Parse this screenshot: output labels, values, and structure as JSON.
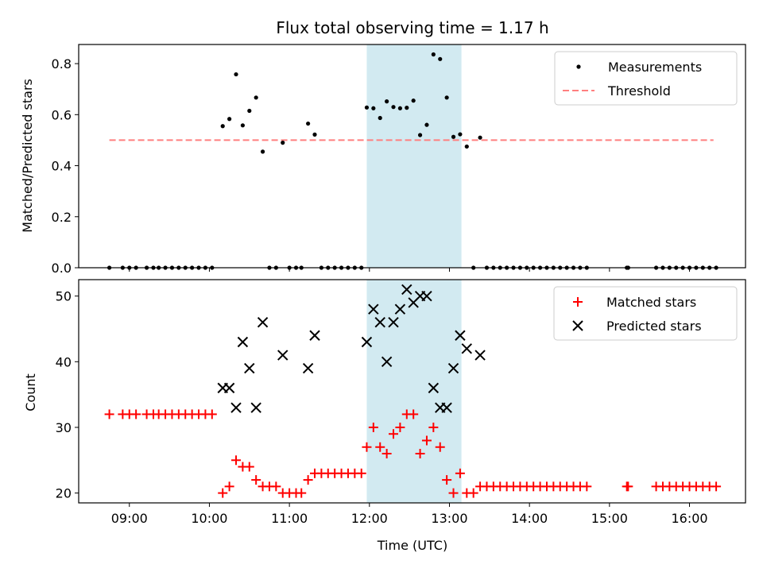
{
  "chart_data": {
    "title": "Flux total observing time = 1.17 h",
    "xlabel": "Time (UTC)",
    "x_unit": "hours UTC",
    "xlim": [
      "08:22",
      "16:42"
    ],
    "x_ticks": [
      "09:00",
      "10:00",
      "11:00",
      "12:00",
      "13:00",
      "14:00",
      "15:00",
      "16:00"
    ],
    "shaded_interval": {
      "start": "11:58",
      "end": "13:09",
      "color": "#add8e6"
    },
    "colors": {
      "measurements": "#000000",
      "threshold": "#ff7f7f",
      "matched": "#ff0000",
      "predicted": "#000000"
    },
    "top": {
      "type": "scatter",
      "ylabel": "Matched/Predicted stars",
      "ylim": [
        0,
        0.875
      ],
      "y_ticks": [
        "0.0",
        "0.2",
        "0.4",
        "0.6",
        "0.8"
      ],
      "legend": {
        "position": "top-right",
        "items": [
          "Measurements",
          "Threshold"
        ]
      },
      "threshold": {
        "value": 0.5,
        "x_start": "08:45",
        "x_end": "16:18"
      },
      "measurements": [
        [
          "08:45",
          0
        ],
        [
          "08:55",
          0
        ],
        [
          "09:00",
          0
        ],
        [
          "09:05",
          0
        ],
        [
          "09:13",
          0
        ],
        [
          "09:18",
          0
        ],
        [
          "09:22",
          0
        ],
        [
          "09:27",
          0
        ],
        [
          "09:32",
          0
        ],
        [
          "09:37",
          0
        ],
        [
          "09:42",
          0
        ],
        [
          "09:47",
          0
        ],
        [
          "09:52",
          0
        ],
        [
          "09:57",
          0
        ],
        [
          "10:02",
          0
        ],
        [
          "10:10",
          0.555
        ],
        [
          "10:15",
          0.583
        ],
        [
          "10:20",
          0.758
        ],
        [
          "10:25",
          0.558
        ],
        [
          "10:30",
          0.615
        ],
        [
          "10:35",
          0.667
        ],
        [
          "10:40",
          0.455
        ],
        [
          "10:45",
          0
        ],
        [
          "10:50",
          0
        ],
        [
          "10:55",
          0.49
        ],
        [
          "11:00",
          0
        ],
        [
          "11:05",
          0
        ],
        [
          "11:09",
          0
        ],
        [
          "11:14",
          0.565
        ],
        [
          "11:19",
          0.522
        ],
        [
          "11:24",
          0
        ],
        [
          "11:29",
          0
        ],
        [
          "11:34",
          0
        ],
        [
          "11:39",
          0
        ],
        [
          "11:44",
          0
        ],
        [
          "11:49",
          0
        ],
        [
          "11:54",
          0
        ],
        [
          "11:58",
          0.628
        ],
        [
          "12:03",
          0.625
        ],
        [
          "12:08",
          0.587
        ],
        [
          "12:13",
          0.652
        ],
        [
          "12:18",
          0.63
        ],
        [
          "12:23",
          0.625
        ],
        [
          "12:28",
          0.627
        ],
        [
          "12:33",
          0.655
        ],
        [
          "12:38",
          0.52
        ],
        [
          "12:43",
          0.56
        ],
        [
          "12:48",
          0.836
        ],
        [
          "12:53",
          0.818
        ],
        [
          "12:58",
          0.667
        ],
        [
          "13:03",
          0.513
        ],
        [
          "13:08",
          0.523
        ],
        [
          "13:13",
          0.475
        ],
        [
          "13:18",
          0
        ],
        [
          "13:23",
          0.51
        ],
        [
          "13:28",
          0
        ],
        [
          "13:33",
          0
        ],
        [
          "13:38",
          0
        ],
        [
          "13:43",
          0
        ],
        [
          "13:48",
          0
        ],
        [
          "13:53",
          0
        ],
        [
          "13:58",
          0
        ],
        [
          "14:03",
          0
        ],
        [
          "14:08",
          0
        ],
        [
          "14:13",
          0
        ],
        [
          "14:18",
          0
        ],
        [
          "14:23",
          0
        ],
        [
          "14:28",
          0
        ],
        [
          "14:33",
          0
        ],
        [
          "14:38",
          0
        ],
        [
          "14:43",
          0
        ],
        [
          "15:13",
          0
        ],
        [
          "15:14",
          0
        ],
        [
          "15:35",
          0
        ],
        [
          "15:40",
          0
        ],
        [
          "15:45",
          0
        ],
        [
          "15:50",
          0
        ],
        [
          "15:55",
          0
        ],
        [
          "16:00",
          0
        ],
        [
          "16:05",
          0
        ],
        [
          "16:10",
          0
        ],
        [
          "16:15",
          0
        ],
        [
          "16:20",
          0
        ]
      ]
    },
    "bottom": {
      "type": "scatter",
      "ylabel": "Count",
      "ylim": [
        18.5,
        52.5
      ],
      "y_ticks": [
        20,
        30,
        40,
        50
      ],
      "legend": {
        "position": "top-right",
        "items": [
          "Matched stars",
          "Predicted stars"
        ]
      },
      "matched": [
        [
          "08:45",
          32
        ],
        [
          "08:55",
          32
        ],
        [
          "09:00",
          32
        ],
        [
          "09:05",
          32
        ],
        [
          "09:13",
          32
        ],
        [
          "09:18",
          32
        ],
        [
          "09:22",
          32
        ],
        [
          "09:27",
          32
        ],
        [
          "09:32",
          32
        ],
        [
          "09:37",
          32
        ],
        [
          "09:42",
          32
        ],
        [
          "09:47",
          32
        ],
        [
          "09:52",
          32
        ],
        [
          "09:57",
          32
        ],
        [
          "10:02",
          32
        ],
        [
          "10:10",
          20
        ],
        [
          "10:15",
          21
        ],
        [
          "10:20",
          25
        ],
        [
          "10:25",
          24
        ],
        [
          "10:30",
          24
        ],
        [
          "10:35",
          22
        ],
        [
          "10:40",
          21
        ],
        [
          "10:45",
          21
        ],
        [
          "10:50",
          21
        ],
        [
          "10:55",
          20
        ],
        [
          "11:00",
          20
        ],
        [
          "11:05",
          20
        ],
        [
          "11:09",
          20
        ],
        [
          "11:14",
          22
        ],
        [
          "11:19",
          23
        ],
        [
          "11:24",
          23
        ],
        [
          "11:29",
          23
        ],
        [
          "11:34",
          23
        ],
        [
          "11:39",
          23
        ],
        [
          "11:44",
          23
        ],
        [
          "11:49",
          23
        ],
        [
          "11:54",
          23
        ],
        [
          "11:58",
          27
        ],
        [
          "12:03",
          30
        ],
        [
          "12:08",
          27
        ],
        [
          "12:13",
          26
        ],
        [
          "12:18",
          29
        ],
        [
          "12:23",
          30
        ],
        [
          "12:28",
          32
        ],
        [
          "12:33",
          32
        ],
        [
          "12:38",
          26
        ],
        [
          "12:43",
          28
        ],
        [
          "12:48",
          30
        ],
        [
          "12:53",
          27
        ],
        [
          "12:58",
          22
        ],
        [
          "13:03",
          20
        ],
        [
          "13:08",
          23
        ],
        [
          "13:13",
          20
        ],
        [
          "13:18",
          20
        ],
        [
          "13:23",
          21
        ],
        [
          "13:28",
          21
        ],
        [
          "13:33",
          21
        ],
        [
          "13:38",
          21
        ],
        [
          "13:43",
          21
        ],
        [
          "13:48",
          21
        ],
        [
          "13:53",
          21
        ],
        [
          "13:58",
          21
        ],
        [
          "14:03",
          21
        ],
        [
          "14:08",
          21
        ],
        [
          "14:13",
          21
        ],
        [
          "14:18",
          21
        ],
        [
          "14:23",
          21
        ],
        [
          "14:28",
          21
        ],
        [
          "14:33",
          21
        ],
        [
          "14:38",
          21
        ],
        [
          "14:43",
          21
        ],
        [
          "15:13",
          21
        ],
        [
          "15:14",
          21
        ],
        [
          "15:35",
          21
        ],
        [
          "15:40",
          21
        ],
        [
          "15:45",
          21
        ],
        [
          "15:50",
          21
        ],
        [
          "15:55",
          21
        ],
        [
          "16:00",
          21
        ],
        [
          "16:05",
          21
        ],
        [
          "16:10",
          21
        ],
        [
          "16:15",
          21
        ],
        [
          "16:20",
          21
        ]
      ],
      "predicted": [
        [
          "10:10",
          36
        ],
        [
          "10:15",
          36
        ],
        [
          "10:20",
          33
        ],
        [
          "10:25",
          43
        ],
        [
          "10:30",
          39
        ],
        [
          "10:35",
          33
        ],
        [
          "10:40",
          46
        ],
        [
          "10:55",
          41
        ],
        [
          "11:14",
          39
        ],
        [
          "11:19",
          44
        ],
        [
          "11:58",
          43
        ],
        [
          "12:03",
          48
        ],
        [
          "12:08",
          46
        ],
        [
          "12:13",
          40
        ],
        [
          "12:18",
          46
        ],
        [
          "12:23",
          48
        ],
        [
          "12:28",
          51
        ],
        [
          "12:33",
          49
        ],
        [
          "12:38",
          50
        ],
        [
          "12:43",
          50
        ],
        [
          "12:48",
          36
        ],
        [
          "12:53",
          33
        ],
        [
          "12:58",
          33
        ],
        [
          "13:03",
          39
        ],
        [
          "13:08",
          44
        ],
        [
          "13:13",
          42
        ],
        [
          "13:23",
          41
        ]
      ]
    }
  }
}
